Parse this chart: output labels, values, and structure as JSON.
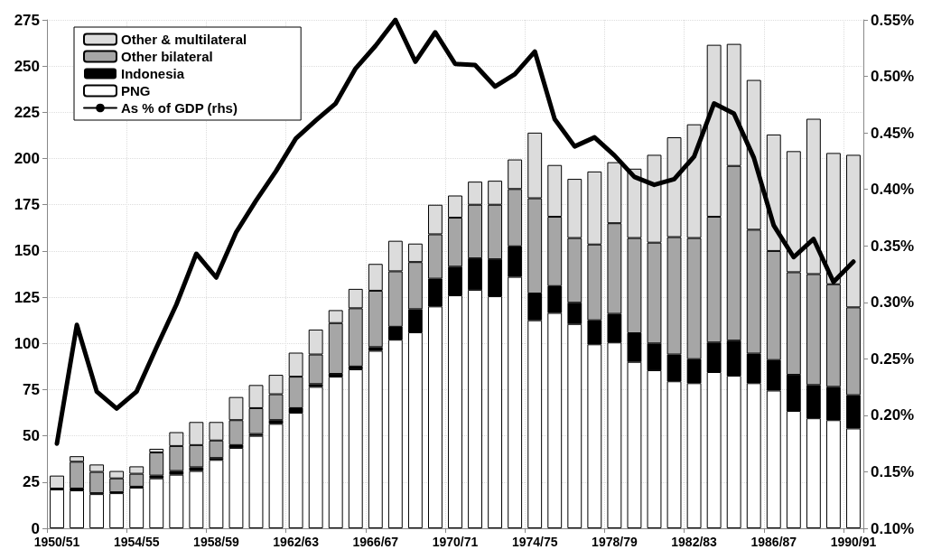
{
  "chart_data": {
    "type": "bar",
    "stacked": true,
    "categories": [
      "1950/51",
      null,
      null,
      null,
      "1954/55",
      null,
      null,
      null,
      "1958/59",
      null,
      null,
      null,
      "1962/63",
      null,
      null,
      null,
      "1966/67",
      null,
      null,
      null,
      "1970/71",
      null,
      null,
      null,
      "1974/75",
      null,
      null,
      null,
      "1978/79",
      null,
      null,
      null,
      "1982/83",
      null,
      null,
      null,
      "1986/87",
      null,
      null,
      null,
      "1990/91"
    ],
    "series": [
      {
        "name": "PNG",
        "color": "#ffffff",
        "values": [
          21,
          20.5,
          18.5,
          19,
          22,
          27,
          29,
          31,
          37,
          43.5,
          50,
          56.5,
          62.5,
          76.5,
          82,
          86,
          96,
          102,
          106,
          120,
          126,
          129,
          125.5,
          136,
          112.5,
          116.5,
          110.5,
          99.5,
          100.5,
          90,
          85.5,
          79.5,
          78.5,
          84.5,
          82.5,
          78.5,
          74.5,
          63.5,
          59.5,
          58.5,
          54
        ]
      },
      {
        "name": "Indonesia",
        "color": "#000000",
        "values": [
          0.5,
          1,
          0.5,
          0.5,
          0.5,
          1.5,
          2,
          2,
          1,
          1.5,
          1,
          2,
          2.5,
          1.5,
          1.5,
          1.5,
          2,
          7,
          12.5,
          15,
          15.5,
          17,
          20,
          16.5,
          14.5,
          14.5,
          11.5,
          13,
          15.5,
          15.5,
          14.5,
          14.5,
          13,
          16,
          19,
          16,
          16.5,
          19.5,
          18,
          18,
          18
        ]
      },
      {
        "name": "Other bilateral",
        "color": "#a6a6a6",
        "values": [
          null,
          14.5,
          11.5,
          7.5,
          7,
          12.5,
          13.5,
          12,
          9.5,
          13.5,
          14,
          14,
          17,
          16,
          27.5,
          31.5,
          30.5,
          30,
          25.5,
          24,
          26.5,
          29,
          29.5,
          31,
          51.5,
          37.5,
          35,
          41,
          49,
          51.5,
          54.5,
          63.5,
          65.5,
          68,
          94.5,
          67,
          59,
          55.5,
          60,
          55.5,
          47.5
        ]
      },
      {
        "name": "Other & multilateral",
        "color": "#dcdcdc",
        "values": [
          7,
          3,
          4,
          4,
          4,
          2,
          7.5,
          12.5,
          10,
          12.5,
          12.5,
          10.5,
          13,
          13.5,
          7,
          10.5,
          14.5,
          16.5,
          10,
          16,
          12,
          12.5,
          13,
          16,
          35.5,
          28,
          32,
          39.5,
          33,
          37.5,
          47.5,
          54,
          61.5,
          93,
          66,
          81,
          63,
          65.5,
          84,
          71,
          82.5
        ]
      },
      {
        "name": "As % of GDP (rhs)",
        "type": "line",
        "axis": "y2",
        "color": "#000000",
        "values": [
          0.175,
          0.28,
          0.221,
          0.206,
          0.221,
          0.26,
          0.298,
          0.343,
          0.322,
          0.362,
          0.39,
          0.416,
          0.445,
          0.461,
          0.476,
          0.507,
          0.527,
          0.55,
          0.513,
          0.539,
          0.511,
          0.51,
          0.491,
          0.502,
          0.522,
          0.462,
          0.438,
          0.446,
          0.43,
          0.411,
          0.404,
          0.409,
          0.429,
          0.476,
          0.467,
          0.428,
          0.368,
          0.34,
          0.356,
          0.318,
          0.336
        ]
      }
    ],
    "ylim": [
      0,
      275
    ],
    "yticks": [
      0,
      25,
      50,
      75,
      100,
      125,
      150,
      175,
      200,
      225,
      250,
      275
    ],
    "y2lim": [
      0.1,
      0.55
    ],
    "y2ticks": [
      {
        "value": 0.1,
        "label": "0.10%"
      },
      {
        "value": 0.15,
        "label": "0.15%"
      },
      {
        "value": 0.2,
        "label": "0.20%"
      },
      {
        "value": 0.25,
        "label": "0.25%"
      },
      {
        "value": 0.3,
        "label": "0.30%"
      },
      {
        "value": 0.35,
        "label": "0.35%"
      },
      {
        "value": 0.4,
        "label": "0.40%"
      },
      {
        "value": 0.45,
        "label": "0.45%"
      },
      {
        "value": 0.5,
        "label": "0.50%"
      },
      {
        "value": 0.55,
        "label": "0.55%"
      }
    ],
    "grid": true,
    "legend": "top left",
    "marker": "none",
    "line_style": "solid"
  }
}
